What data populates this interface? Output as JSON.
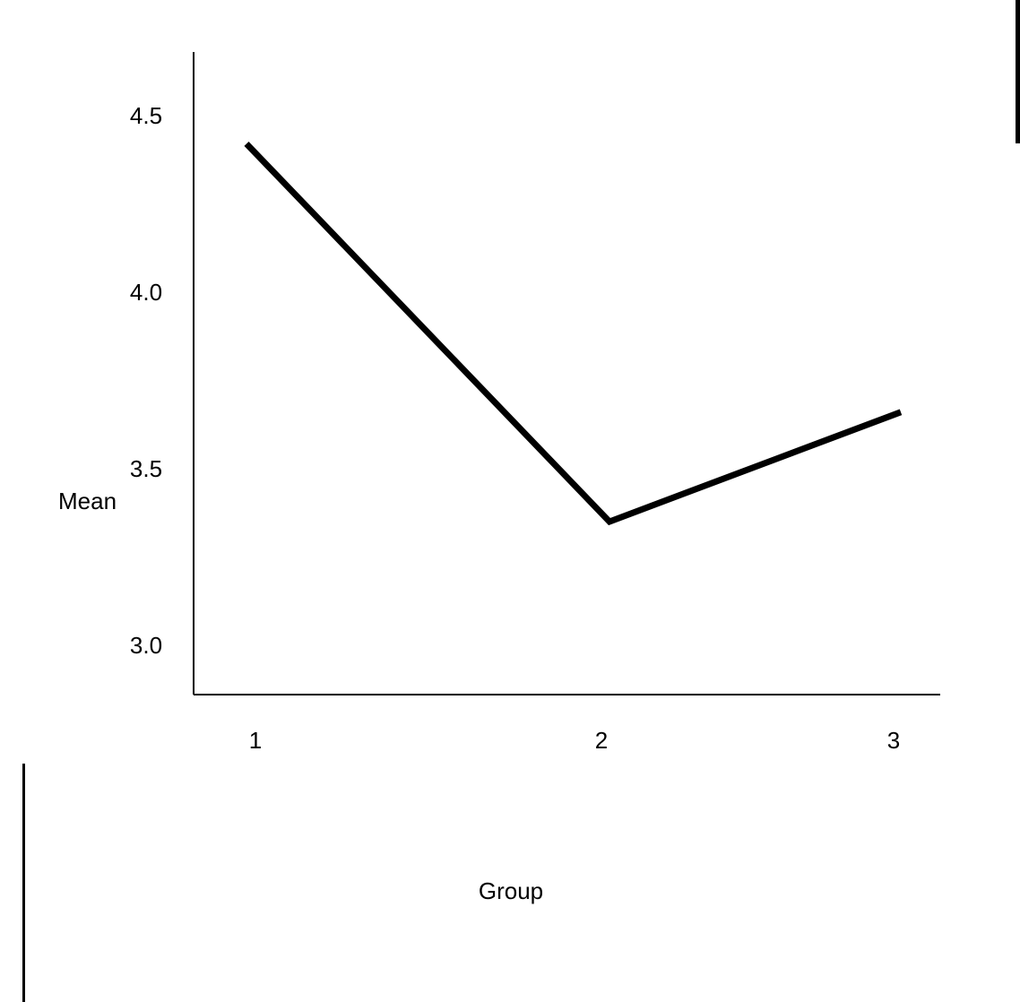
{
  "chart_data": {
    "type": "line",
    "title": "",
    "xlabel": "Group",
    "ylabel": "Mean",
    "categories": [
      "1",
      "2",
      "3"
    ],
    "series": [
      {
        "values": [
          4.42,
          3.35,
          3.66
        ]
      }
    ],
    "yticks": [
      "3.0",
      "3.5",
      "4.0",
      "4.5"
    ],
    "ytick_values": [
      3.0,
      3.5,
      4.0,
      4.5
    ],
    "ylim": [
      2.86,
      4.68
    ],
    "grid": false,
    "legend": "none",
    "colors": {
      "line": "#000000",
      "axis": "#000000"
    }
  }
}
